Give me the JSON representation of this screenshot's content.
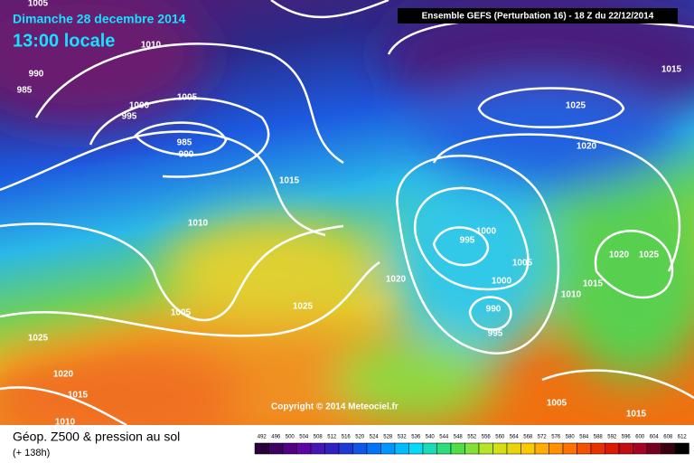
{
  "header": {
    "date": "Dimanche 28 decembre 2014",
    "time": "13:00 locale",
    "model": "Ensemble GEFS  (Perturbation 16)  -  18 Z du 22/12/2014"
  },
  "copyright": "Copyright © 2014 Meteociel.fr",
  "footer": {
    "title": "Géop. Z500 & pression au sol",
    "lead": "(+ 138h)"
  },
  "pressure_labels": [
    "1005",
    "1010",
    "990",
    "985",
    "1005",
    "1000",
    "995",
    "985",
    "990",
    "1015",
    "1025",
    "1020",
    "1015",
    "1010",
    "995",
    "1000",
    "1005",
    "1020",
    "1000",
    "1010",
    "1015",
    "1020",
    "1025",
    "1025",
    "1005",
    "990",
    "995",
    "1025",
    "1020",
    "1015",
    "1010",
    "1005",
    "1015"
  ],
  "scale": [
    "492",
    "496",
    "500",
    "504",
    "508",
    "512",
    "516",
    "520",
    "524",
    "528",
    "532",
    "536",
    "540",
    "544",
    "548",
    "552",
    "556",
    "560",
    "564",
    "568",
    "572",
    "576",
    "580",
    "584",
    "588",
    "592",
    "596",
    "600",
    "604",
    "608",
    "612"
  ]
}
